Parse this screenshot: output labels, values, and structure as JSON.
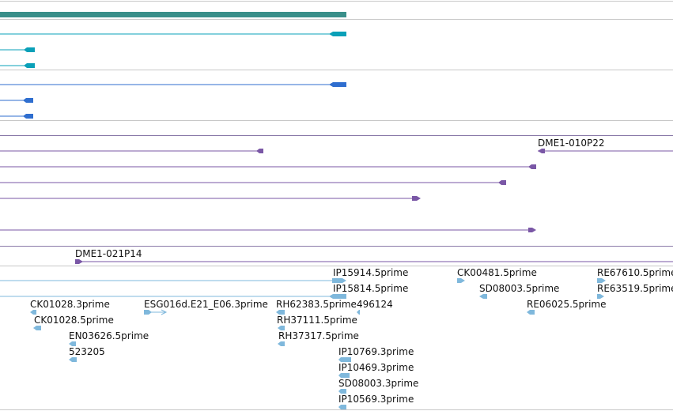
{
  "colors": {
    "gene": "#3a8f8a",
    "transcript_teal": "#0aa0b8",
    "transcript_blue": "#2f6ecf",
    "clone": "#7a57a6",
    "est": "#7fb8dc",
    "separator": "#c8c8c8",
    "text": "#111111"
  },
  "labels": {
    "bac_top": "DME1-010P22",
    "bac_bottom": "DME1-021P14",
    "est_labels": [
      "IP15914.5prime",
      "CK00481.5prime",
      "RE67610.5prime",
      "IP15814.5prime",
      "SD08003.5prime",
      "RE63519.5prime",
      "CK01028.3prime",
      "ESG016d.E21_E06.3prime",
      "RH62383.5prime",
      "496124",
      "RE06025.5prime",
      "CK01028.5prime",
      "RH37111.5prime",
      "EN03626.5prime",
      "RH37317.5prime",
      "523205",
      "IP10769.3prime",
      "IP10469.3prime",
      "SD08003.3prime",
      "IP10569.3prime"
    ]
  }
}
